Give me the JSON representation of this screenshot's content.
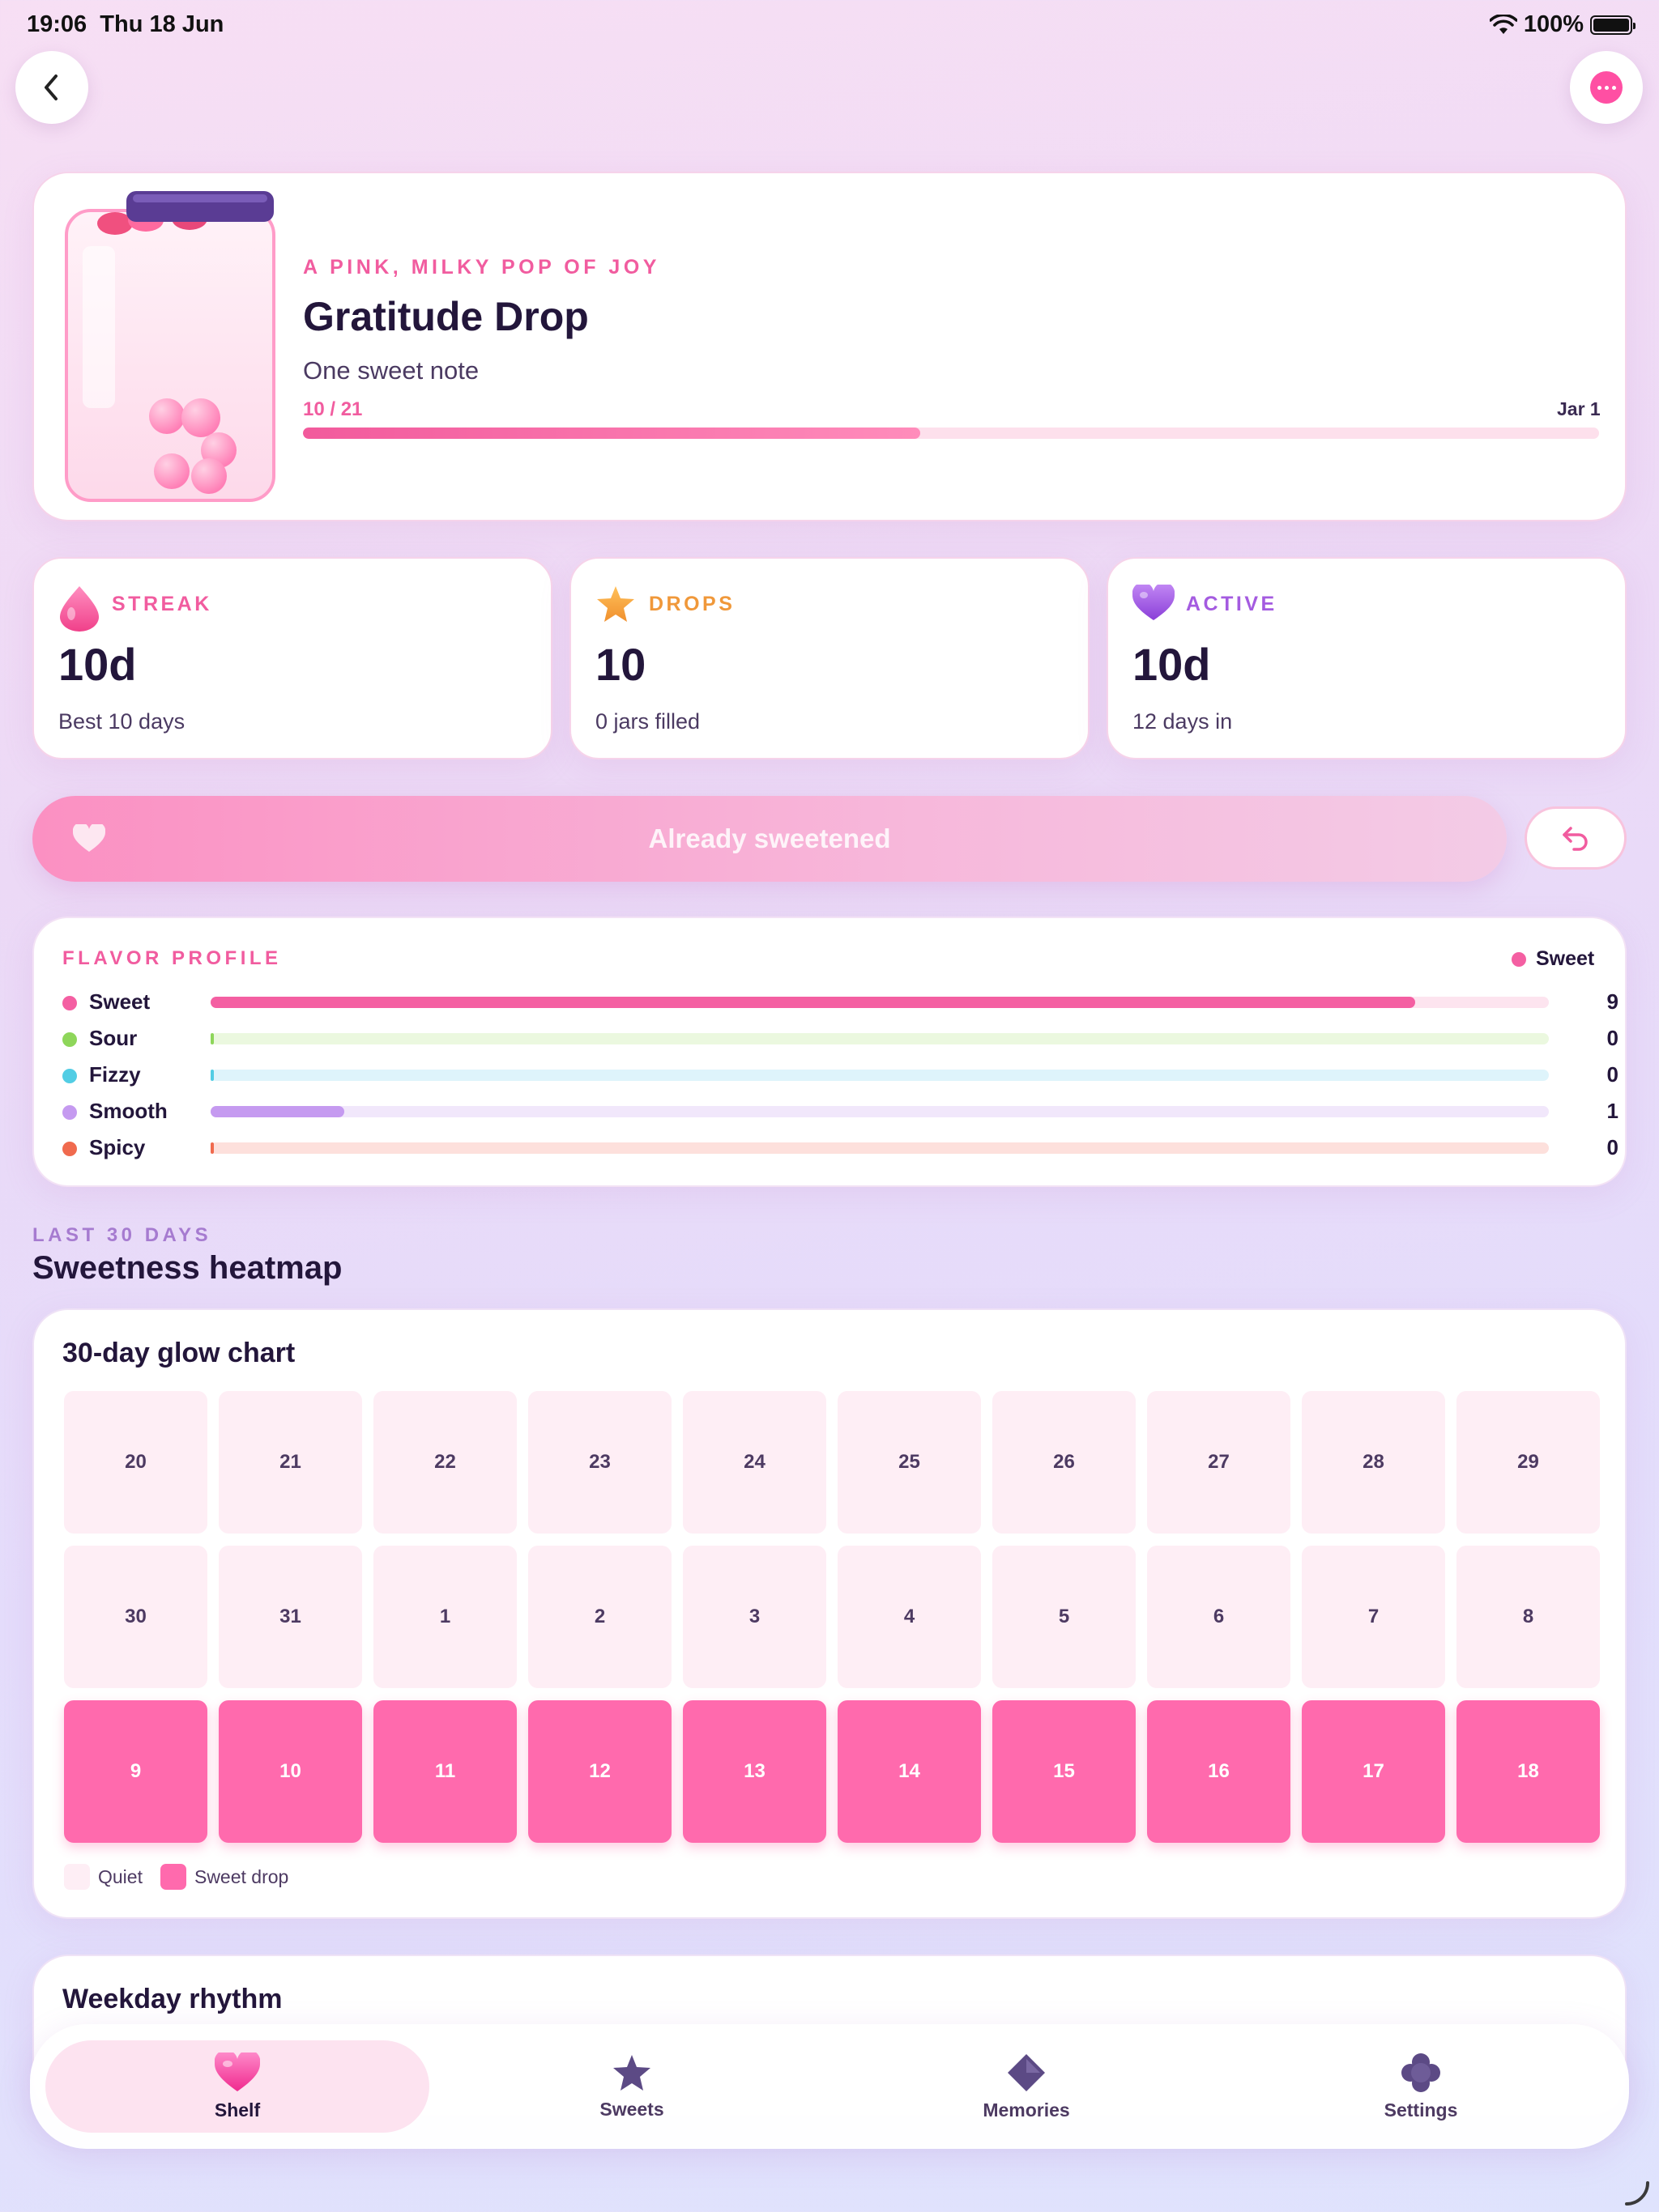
{
  "status_bar": {
    "time": "19:06",
    "date": "Thu 18 Jun",
    "battery": "100%"
  },
  "hero": {
    "eyebrow": "A PINK, MILKY POP OF JOY",
    "title": "Gratitude Drop",
    "subtitle": "One sweet note",
    "progress_text": "10 / 21",
    "progress_fraction": 0.476,
    "jar_label": "Jar 1"
  },
  "stats": [
    {
      "label": "STREAK",
      "value": "10d",
      "sub": "Best 10 days",
      "icon": "pink-drop-icon",
      "color": "#f15c9f"
    },
    {
      "label": "DROPS",
      "value": "10",
      "sub": "0 jars filled",
      "icon": "star-icon",
      "color": "#f0983a"
    },
    {
      "label": "ACTIVE",
      "value": "10d",
      "sub": "12 days in",
      "icon": "purple-heart-icon",
      "color": "#a45be0"
    }
  ],
  "action": {
    "label": "Already sweetened"
  },
  "flavor_profile": {
    "title": "FLAVOR PROFILE",
    "top_flavor": "Sweet",
    "max": 9,
    "flavors": [
      {
        "name": "Sweet",
        "count": 9,
        "color": "#f45fa2",
        "track": "#fde4ef"
      },
      {
        "name": "Sour",
        "count": 0,
        "color": "#8ed65a",
        "track": "#ebf8df"
      },
      {
        "name": "Fizzy",
        "count": 0,
        "color": "#52cde4",
        "track": "#def4fb"
      },
      {
        "name": "Smooth",
        "count": 1,
        "color": "#c59af0",
        "track": "#f1e7fb"
      },
      {
        "name": "Spicy",
        "count": 0,
        "color": "#f06a4e",
        "track": "#fde0dc"
      }
    ]
  },
  "heatmap_section": {
    "eyebrow": "LAST 30 DAYS",
    "title": "Sweetness heatmap",
    "card_title": "30-day glow chart",
    "days": [
      {
        "day": "20",
        "sweet": false
      },
      {
        "day": "21",
        "sweet": false
      },
      {
        "day": "22",
        "sweet": false
      },
      {
        "day": "23",
        "sweet": false
      },
      {
        "day": "24",
        "sweet": false
      },
      {
        "day": "25",
        "sweet": false
      },
      {
        "day": "26",
        "sweet": false
      },
      {
        "day": "27",
        "sweet": false
      },
      {
        "day": "28",
        "sweet": false
      },
      {
        "day": "29",
        "sweet": false
      },
      {
        "day": "30",
        "sweet": false
      },
      {
        "day": "31",
        "sweet": false
      },
      {
        "day": "1",
        "sweet": false
      },
      {
        "day": "2",
        "sweet": false
      },
      {
        "day": "3",
        "sweet": false
      },
      {
        "day": "4",
        "sweet": false
      },
      {
        "day": "5",
        "sweet": false
      },
      {
        "day": "6",
        "sweet": false
      },
      {
        "day": "7",
        "sweet": false
      },
      {
        "day": "8",
        "sweet": false
      },
      {
        "day": "9",
        "sweet": true
      },
      {
        "day": "10",
        "sweet": true
      },
      {
        "day": "11",
        "sweet": true
      },
      {
        "day": "12",
        "sweet": true
      },
      {
        "day": "13",
        "sweet": true
      },
      {
        "day": "14",
        "sweet": true
      },
      {
        "day": "15",
        "sweet": true
      },
      {
        "day": "16",
        "sweet": true
      },
      {
        "day": "17",
        "sweet": true
      },
      {
        "day": "18",
        "sweet": true
      }
    ],
    "legend_quiet": "Quiet",
    "legend_sweet": "Sweet drop"
  },
  "weekday": {
    "title": "Weekday rhythm"
  },
  "tabs": [
    {
      "label": "Shelf",
      "icon": "pink-heart-icon",
      "active": true
    },
    {
      "label": "Sweets",
      "icon": "star-icon",
      "active": false
    },
    {
      "label": "Memories",
      "icon": "diamond-icon",
      "active": false
    },
    {
      "label": "Settings",
      "icon": "flower-gear-icon",
      "active": false
    }
  ]
}
